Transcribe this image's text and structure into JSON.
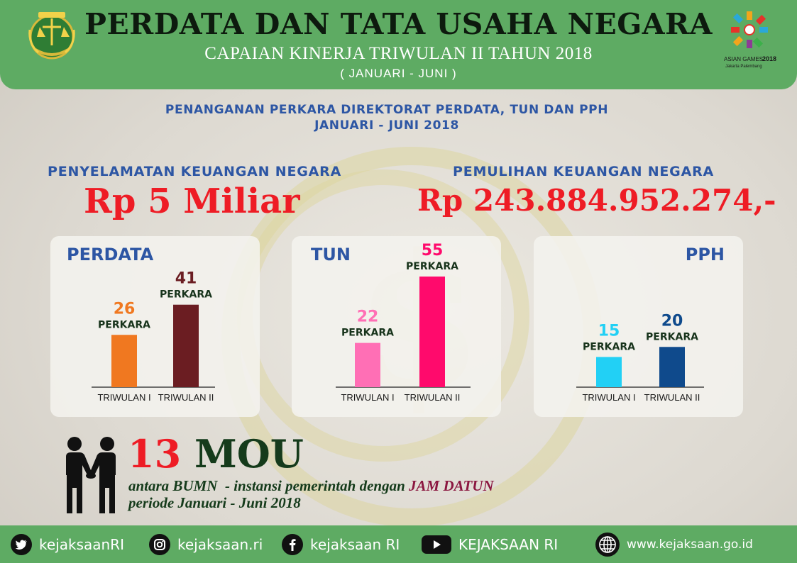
{
  "header": {
    "title": "PERDATA DAN TATA USAHA NEGARA",
    "subtitle": "CAPAIAN KINERJA TRIWULAN II TAHUN 2018",
    "period": "( JANUARI - JUNI )",
    "logo_left": "kejaksaan-emblem",
    "logo_right": "asian-games-2018-logo",
    "bg_color": "#5eab63"
  },
  "section": {
    "heading_line1": "PENANGANAN PERKARA DIREKTORAT PERDATA, TUN DAN PPH",
    "heading_line2": "JANUARI - JUNI 2018"
  },
  "money": {
    "saving_label": "PENYELAMATAN KEUANGAN NEGARA",
    "saving_value": "Rp 5 Miliar",
    "recovery_label": "PEMULIHAN KEUANGAN NEGARA",
    "recovery_value": "Rp 243.884.952.274,-"
  },
  "chart_data": [
    {
      "type": "bar",
      "title": "PERDATA",
      "categories": [
        "TRIWULAN I",
        "TRIWULAN II"
      ],
      "values": [
        26,
        41
      ],
      "unit": "PERKARA",
      "colors": [
        "#f07820",
        "#6b1d22"
      ]
    },
    {
      "type": "bar",
      "title": "TUN",
      "categories": [
        "TRIWULAN I",
        "TRIWULAN II"
      ],
      "values": [
        22,
        55
      ],
      "unit": "PERKARA",
      "colors": [
        "#ff6fb5",
        "#ff0a6c"
      ]
    },
    {
      "type": "bar",
      "title": "PPH",
      "categories": [
        "TRIWULAN I",
        "TRIWULAN II"
      ],
      "values": [
        15,
        20
      ],
      "unit": "PERKARA",
      "colors": [
        "#22d0f5",
        "#0f4a8c"
      ]
    }
  ],
  "mou": {
    "icon": "handshake-icon",
    "count": "13",
    "word": "MOU",
    "desc_prefix": "antara BUMN  - instansi pemerintah dengan ",
    "desc_highlight": "JAM DATUN",
    "desc_line2": "periode Januari - Juni 2018"
  },
  "footer": {
    "twitter": "kejaksaanRI",
    "instagram": "kejaksaan.ri",
    "facebook": "kejaksaan RI",
    "youtube": "KEJAKSAAN RI",
    "website": "www.kejaksaan.go.id"
  }
}
